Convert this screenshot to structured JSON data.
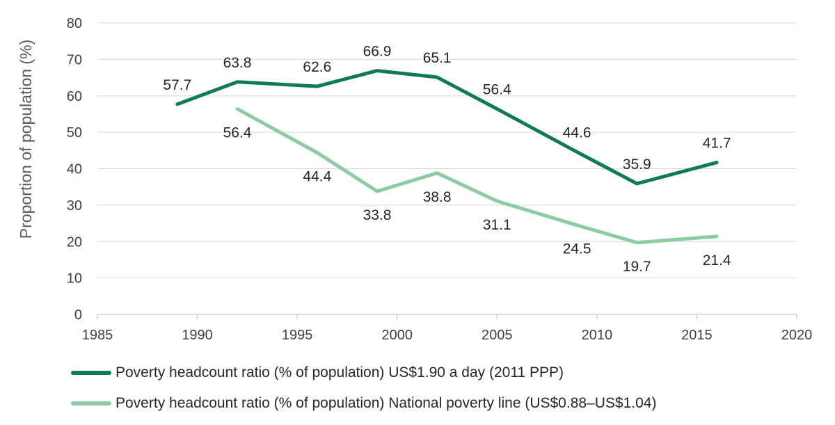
{
  "chart_data": {
    "type": "line",
    "title": "",
    "xlabel": "",
    "ylabel": "Proportion of population (%)",
    "xlim": [
      1985,
      2020
    ],
    "ylim": [
      0,
      80
    ],
    "xticks": [
      1985,
      1990,
      1995,
      2000,
      2005,
      2010,
      2015,
      2020
    ],
    "yticks": [
      0,
      10,
      20,
      30,
      40,
      50,
      60,
      70,
      80
    ],
    "grid": true,
    "legend_position": "bottom",
    "series": [
      {
        "name": "Poverty headcount ratio  (% of population) US$1.90 a day (2011 PPP)",
        "color": "#0f7a53",
        "x": [
          1989,
          1992,
          1996,
          1999,
          2002,
          2005,
          2009,
          2012,
          2016
        ],
        "values": [
          57.7,
          63.8,
          62.6,
          66.9,
          65.1,
          56.4,
          44.6,
          35.9,
          41.7
        ]
      },
      {
        "name": "Poverty headcount ratio  (% of population) National poverty line (US$0.88–US$1.04)",
        "color": "#8ccba4",
        "x": [
          1992,
          1996,
          1999,
          2002,
          2005,
          2009,
          2012,
          2016
        ],
        "values": [
          56.4,
          44.4,
          33.8,
          38.8,
          31.1,
          24.5,
          19.7,
          21.4
        ]
      }
    ]
  }
}
